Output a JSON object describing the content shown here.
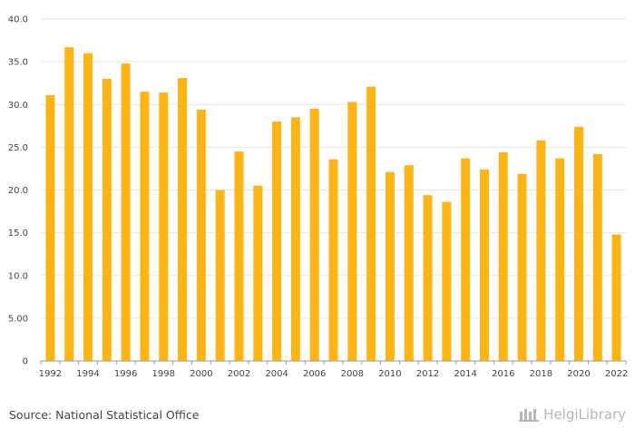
{
  "chart_data": {
    "type": "bar",
    "categories": [
      "1992",
      "1993",
      "1994",
      "1995",
      "1996",
      "1997",
      "1998",
      "1999",
      "2000",
      "2001",
      "2002",
      "2003",
      "2004",
      "2005",
      "2006",
      "2007",
      "2008",
      "2009",
      "2010",
      "2011",
      "2012",
      "2013",
      "2014",
      "2015",
      "2016",
      "2017",
      "2018",
      "2019",
      "2020",
      "2021",
      "2022"
    ],
    "x_tick_labels": [
      "1992",
      "1994",
      "1996",
      "1998",
      "2000",
      "2002",
      "2004",
      "2006",
      "2008",
      "2010",
      "2012",
      "2014",
      "2016",
      "2018",
      "2020",
      "2022"
    ],
    "values": [
      31.1,
      36.7,
      36.0,
      33.0,
      34.8,
      31.5,
      31.4,
      33.1,
      29.4,
      20.0,
      24.5,
      20.5,
      28.0,
      28.5,
      29.5,
      23.6,
      30.3,
      32.1,
      22.1,
      22.9,
      19.4,
      18.6,
      23.7,
      22.4,
      24.4,
      21.9,
      25.8,
      23.7,
      27.4,
      24.2,
      14.8
    ],
    "y_ticks": [
      "0",
      "5.00",
      "10.0",
      "15.0",
      "20.0",
      "25.0",
      "30.0",
      "35.0",
      "40.0"
    ],
    "ylim": [
      0,
      40
    ],
    "grid": true,
    "title": "",
    "xlabel": "",
    "ylabel": "",
    "bar_color": "#FDB515",
    "grid_color": "#E6E6E6",
    "axis_color": "#9A9A9A"
  },
  "footer": {
    "source": "Source: National Statistical Office",
    "brand_name": "HelgiLibrary",
    "brand_icon": "helgi-library-logo-icon"
  }
}
